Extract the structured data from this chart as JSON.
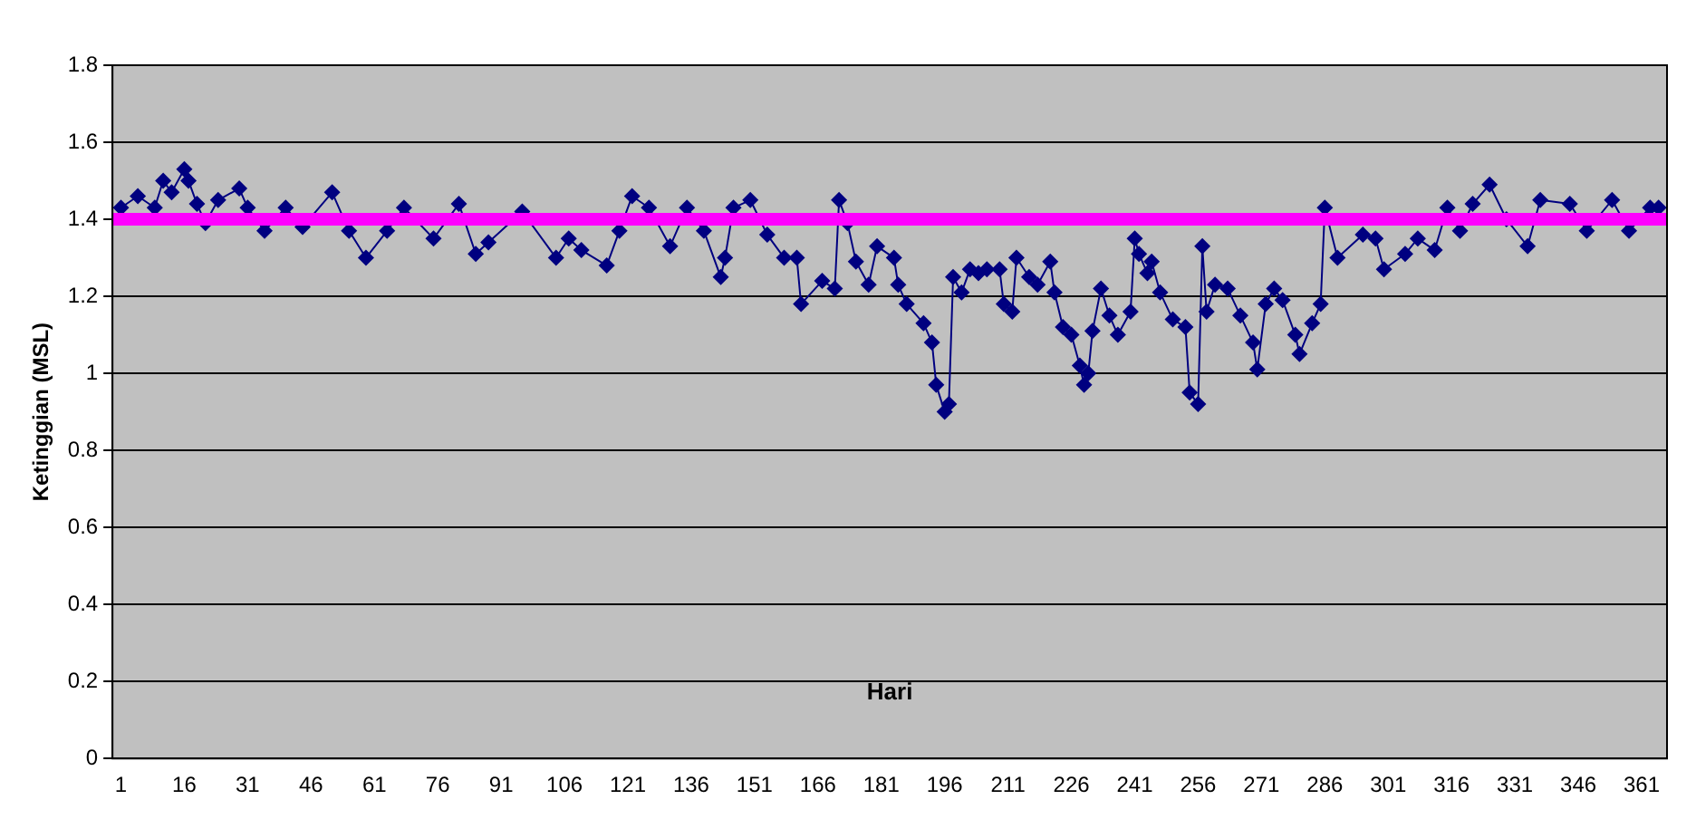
{
  "chart_data": {
    "type": "line",
    "xlabel": "Hari",
    "ylabel": "Ketinggian (MSL)",
    "x": [
      1,
      5,
      9,
      11,
      13,
      16,
      17,
      19,
      21,
      24,
      29,
      31,
      35,
      40,
      44,
      51,
      55,
      59,
      64,
      68,
      75,
      81,
      85,
      88,
      96,
      104,
      107,
      110,
      116,
      119,
      122,
      126,
      131,
      135,
      139,
      143,
      144,
      146,
      150,
      154,
      158,
      161,
      162,
      167,
      170,
      171,
      173,
      175,
      178,
      180,
      184,
      185,
      187,
      191,
      193,
      194,
      196,
      197,
      198,
      200,
      202,
      204,
      206,
      209,
      210,
      212,
      213,
      216,
      218,
      221,
      222,
      224,
      226,
      228,
      229,
      230,
      231,
      233,
      235,
      237,
      240,
      241,
      242,
      244,
      245,
      247,
      250,
      253,
      254,
      256,
      257,
      258,
      260,
      263,
      266,
      269,
      270,
      272,
      274,
      276,
      279,
      280,
      283,
      285,
      286,
      289,
      295,
      298,
      300,
      305,
      308,
      312,
      315,
      318,
      321,
      325,
      329,
      334,
      337,
      344,
      348,
      354,
      358,
      363,
      365
    ],
    "series": [
      {
        "color": "#000080",
        "values": [
          1.43,
          1.46,
          1.43,
          1.5,
          1.47,
          1.53,
          1.5,
          1.44,
          1.39,
          1.45,
          1.48,
          1.43,
          1.37,
          1.43,
          1.38,
          1.47,
          1.37,
          1.3,
          1.37,
          1.43,
          1.35,
          1.44,
          1.31,
          1.34,
          1.42,
          1.3,
          1.35,
          1.32,
          1.28,
          1.37,
          1.46,
          1.43,
          1.33,
          1.43,
          1.37,
          1.25,
          1.3,
          1.43,
          1.45,
          1.36,
          1.3,
          1.3,
          1.18,
          1.24,
          1.22,
          1.45,
          1.39,
          1.29,
          1.23,
          1.33,
          1.3,
          1.23,
          1.18,
          1.13,
          1.08,
          0.97,
          0.9,
          0.92,
          1.25,
          1.21,
          1.27,
          1.26,
          1.27,
          1.27,
          1.18,
          1.16,
          1.3,
          1.25,
          1.23,
          1.29,
          1.21,
          1.12,
          1.1,
          1.02,
          0.97,
          1.0,
          1.11,
          1.22,
          1.15,
          1.1,
          1.16,
          1.35,
          1.31,
          1.26,
          1.29,
          1.21,
          1.14,
          1.12,
          0.95,
          0.92,
          1.33,
          1.16,
          1.23,
          1.22,
          1.15,
          1.08,
          1.01,
          1.18,
          1.22,
          1.19,
          1.1,
          1.05,
          1.13,
          1.18,
          1.43,
          1.3,
          1.36,
          1.35,
          1.27,
          1.31,
          1.35,
          1.32,
          1.43,
          1.37,
          1.44,
          1.49,
          1.4,
          1.33,
          1.45,
          1.44,
          1.37,
          1.45,
          1.37,
          1.43,
          1.43
        ]
      }
    ],
    "xlim": [
      -1,
      367
    ],
    "xticks": [
      1,
      16,
      31,
      46,
      61,
      76,
      91,
      106,
      121,
      136,
      151,
      166,
      181,
      196,
      211,
      226,
      241,
      256,
      271,
      286,
      301,
      316,
      331,
      346,
      361
    ],
    "ylim": [
      0,
      1.8
    ],
    "yticks": [
      0,
      0.2,
      0.4,
      0.6,
      0.8,
      1,
      1.2,
      1.4,
      1.6,
      1.8
    ],
    "ref_lines": [
      {
        "axis": "y",
        "value": 1.4,
        "color": "#ff00ff"
      }
    ],
    "grid": "y",
    "marker": "diamond",
    "line_style": "solid",
    "legend": false
  }
}
